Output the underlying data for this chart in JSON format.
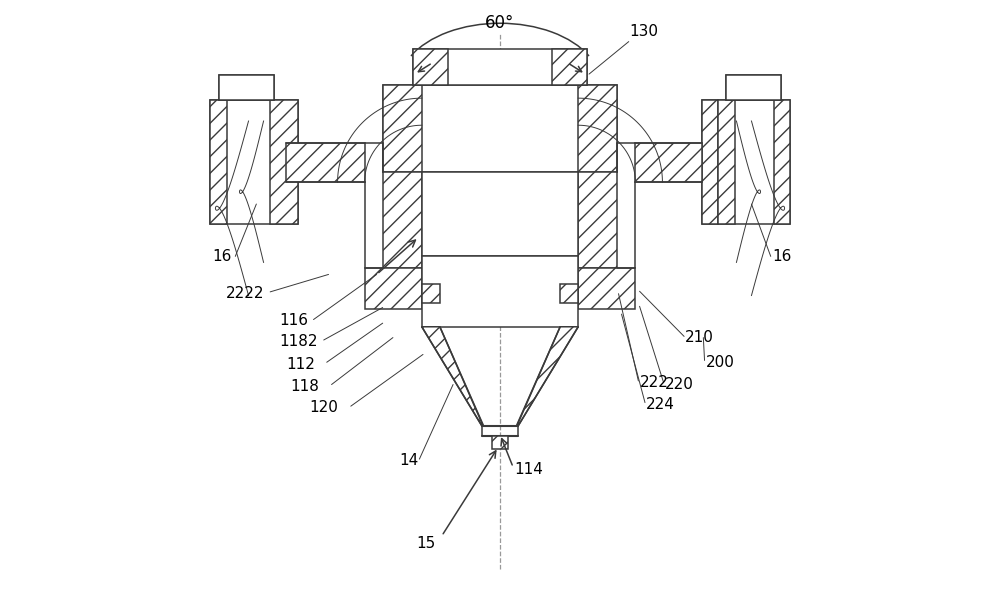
{
  "bg_color": "#ffffff",
  "line_color": "#3a3a3a",
  "label_color": "#000000",
  "font_size": 11,
  "hatch_color": "#555555"
}
